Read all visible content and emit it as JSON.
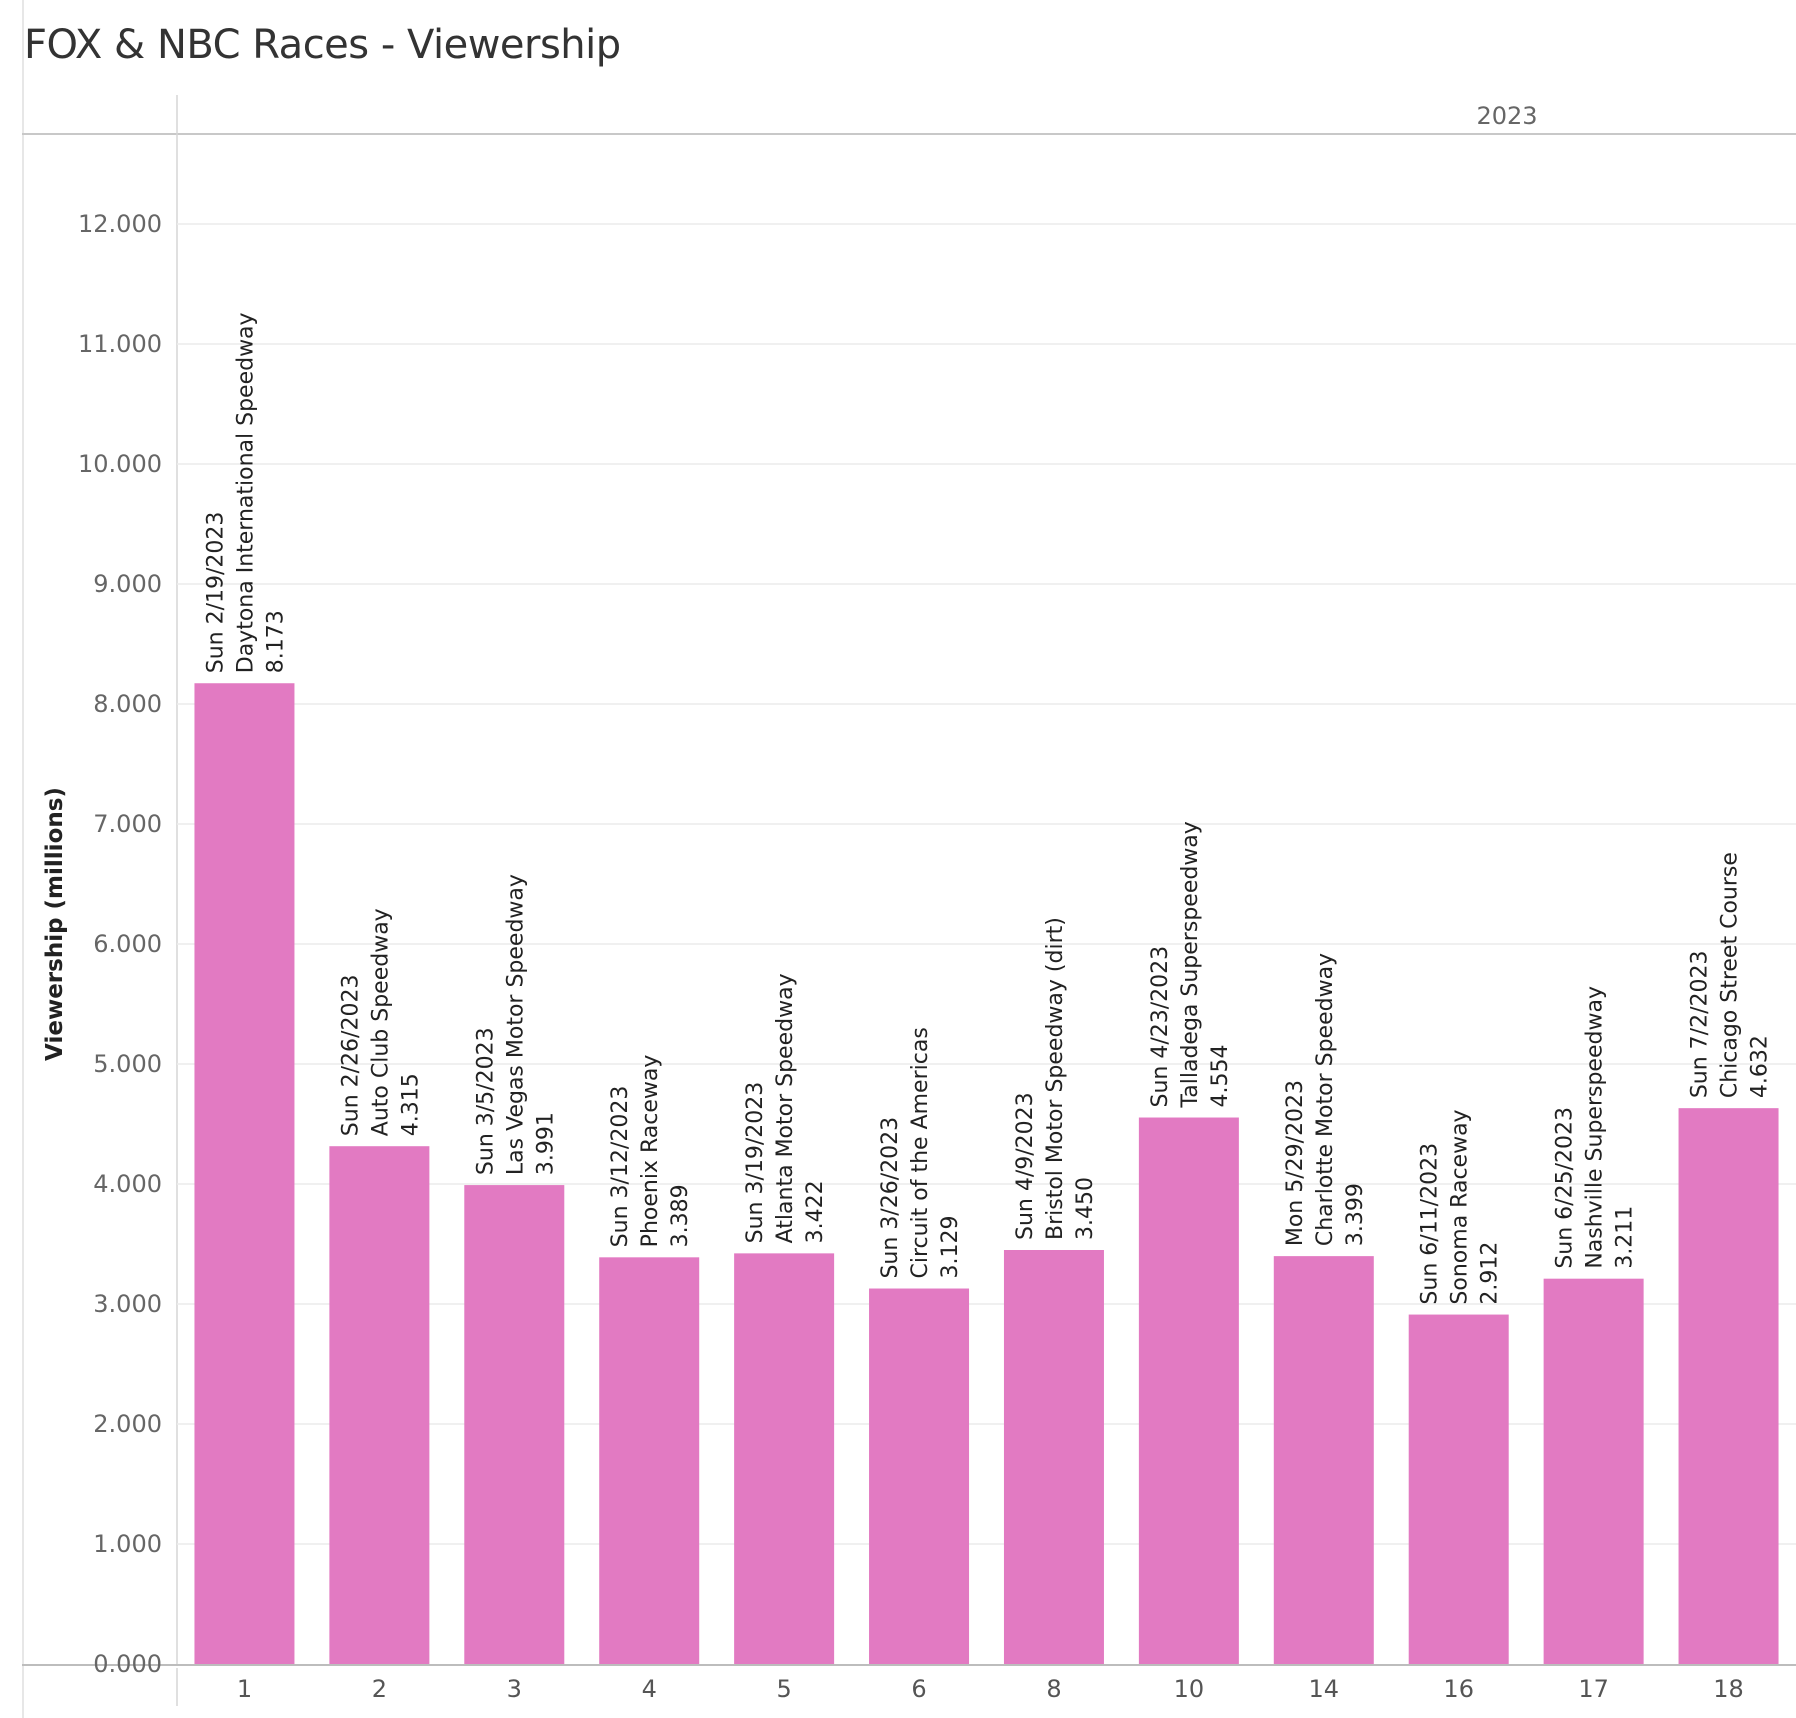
{
  "title": "FOX & NBC Races - Viewership",
  "header": {
    "year": "2023"
  },
  "chart_data": {
    "type": "bar",
    "title": "FOX & NBC Races - Viewership",
    "xlabel": "",
    "ylabel": "Viewership (millions)",
    "ylim": [
      0,
      12.6
    ],
    "yticks": [
      "0.000",
      "1.000",
      "2.000",
      "3.000",
      "4.000",
      "5.000",
      "6.000",
      "7.000",
      "8.000",
      "9.000",
      "10.000",
      "11.000",
      "12.000"
    ],
    "grid": true,
    "color": "#e27ac2",
    "categories": [
      "1",
      "2",
      "3",
      "4",
      "5",
      "6",
      "8",
      "10",
      "14",
      "16",
      "17",
      "18"
    ],
    "values": [
      8.173,
      4.315,
      3.991,
      3.389,
      3.422,
      3.129,
      3.45,
      4.554,
      3.399,
      2.912,
      3.211,
      4.632
    ],
    "bar_labels": [
      [
        "Sun 2/19/2023",
        "Daytona International Speedway",
        "8.173"
      ],
      [
        "Sun 2/26/2023",
        "Auto Club Speedway",
        "4.315"
      ],
      [
        "Sun 3/5/2023",
        "Las Vegas Motor Speedway",
        "3.991"
      ],
      [
        "Sun 3/12/2023",
        "Phoenix Raceway",
        "3.389"
      ],
      [
        "Sun 3/19/2023",
        "Atlanta Motor Speedway",
        "3.422"
      ],
      [
        "Sun 3/26/2023",
        "Circuit of the Americas",
        "3.129"
      ],
      [
        "Sun 4/9/2023",
        "Bristol Motor Speedway (dirt)",
        "3.450"
      ],
      [
        "Sun 4/23/2023",
        "Talladega Superspeedway",
        "4.554"
      ],
      [
        "Mon 5/29/2023",
        "Charlotte Motor Speedway",
        "3.399"
      ],
      [
        "Sun 6/11/2023",
        "Sonoma Raceway",
        "2.912"
      ],
      [
        "Sun 6/25/2023",
        "Nashville Superspeedway",
        "3.211"
      ],
      [
        "Sun 7/2/2023",
        "Chicago Street Course",
        "4.632"
      ]
    ]
  }
}
